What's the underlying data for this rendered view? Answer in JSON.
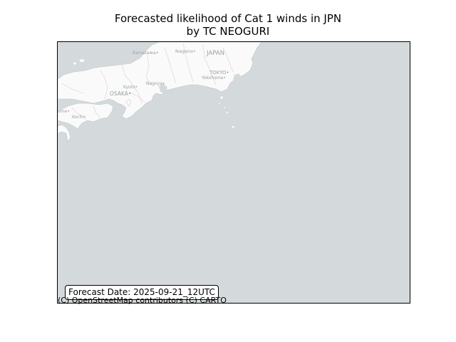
{
  "title": {
    "line1": "Forecasted likelihood of Cat 1 winds in JPN",
    "line2": "by TC NEOGURI"
  },
  "map": {
    "colors": {
      "ocean": "#d4dadc",
      "land": "#fafafa",
      "coast": "#c9cdd0",
      "road": "#e9c9c9",
      "label": "#9aa1a6"
    },
    "labels": {
      "kanazawa": "Kanazawa•",
      "nagano": "Nagano•",
      "japan": "JAPAN",
      "tokyo": "TOKYO•",
      "yokohama": "Yokohama•",
      "kyoto": "Kyoto•",
      "nagoya": "Nagoya•",
      "osaka": "OSAKA•",
      "kochi": "Kochi•",
      "kumamoto_fragment": "ume•"
    }
  },
  "forecast": {
    "text": "Forecast Date: 2025-09-21_12UTC"
  },
  "attribution": "(C) OpenStreetMap contributors (C) CARTO"
}
